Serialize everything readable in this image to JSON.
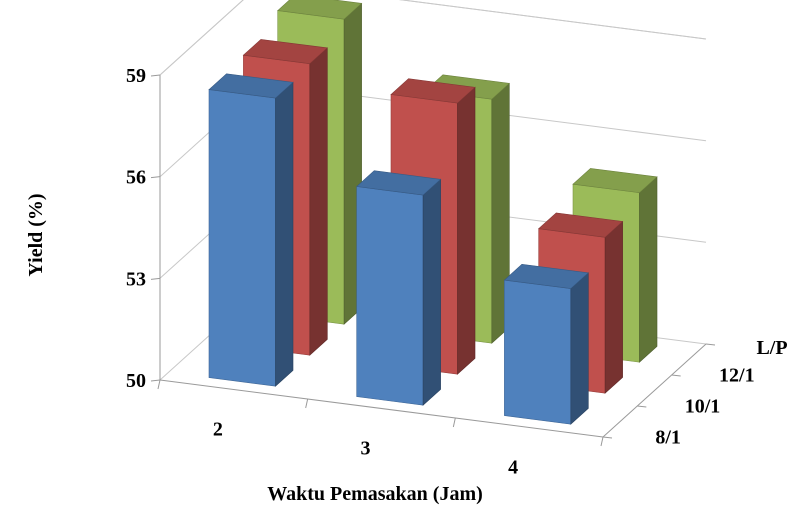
{
  "chart_data": {
    "type": "bar",
    "xlabel": "Waktu Pemasakan (Jam)",
    "ylabel": "Yield (%)",
    "zlabel": "L/P",
    "categories": [
      "2",
      "3",
      "4"
    ],
    "y_ticks": [
      "50",
      "53",
      "56",
      "59"
    ],
    "ylim": [
      50,
      59
    ],
    "grid": true,
    "series": [
      {
        "name": "12/1",
        "values": [
          59.0,
          57.2,
          55.0
        ],
        "color": "#9bbb59"
      },
      {
        "name": "10/1",
        "values": [
          58.6,
          58.0,
          54.6
        ],
        "color": "#c0504d"
      },
      {
        "name": "8/1",
        "values": [
          58.5,
          56.2,
          54.0
        ],
        "color": "#4f81bd"
      }
    ]
  }
}
